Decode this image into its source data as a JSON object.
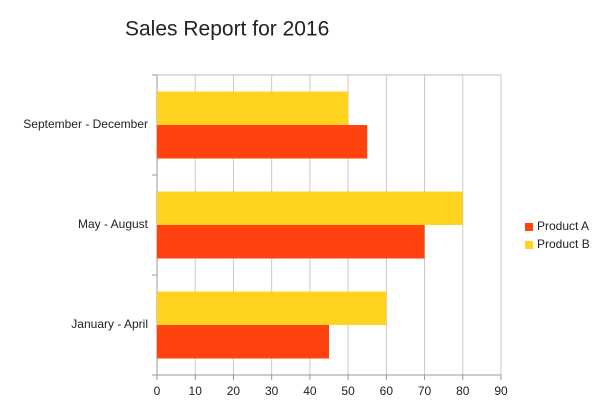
{
  "chart_data": {
    "type": "hbar",
    "title": "Sales Report for 2016",
    "categories": [
      "January - April",
      "May - August",
      "September - December"
    ],
    "series": [
      {
        "name": "Product A",
        "color": "#ff420e",
        "values": [
          45,
          70,
          55
        ]
      },
      {
        "name": "Product B",
        "color": "#ffd320",
        "values": [
          60,
          80,
          50
        ]
      }
    ],
    "xlim": [
      0,
      90
    ],
    "xticks": [
      0,
      10,
      20,
      30,
      40,
      50,
      60,
      70,
      80,
      90
    ],
    "grid": true,
    "legend": "right"
  }
}
